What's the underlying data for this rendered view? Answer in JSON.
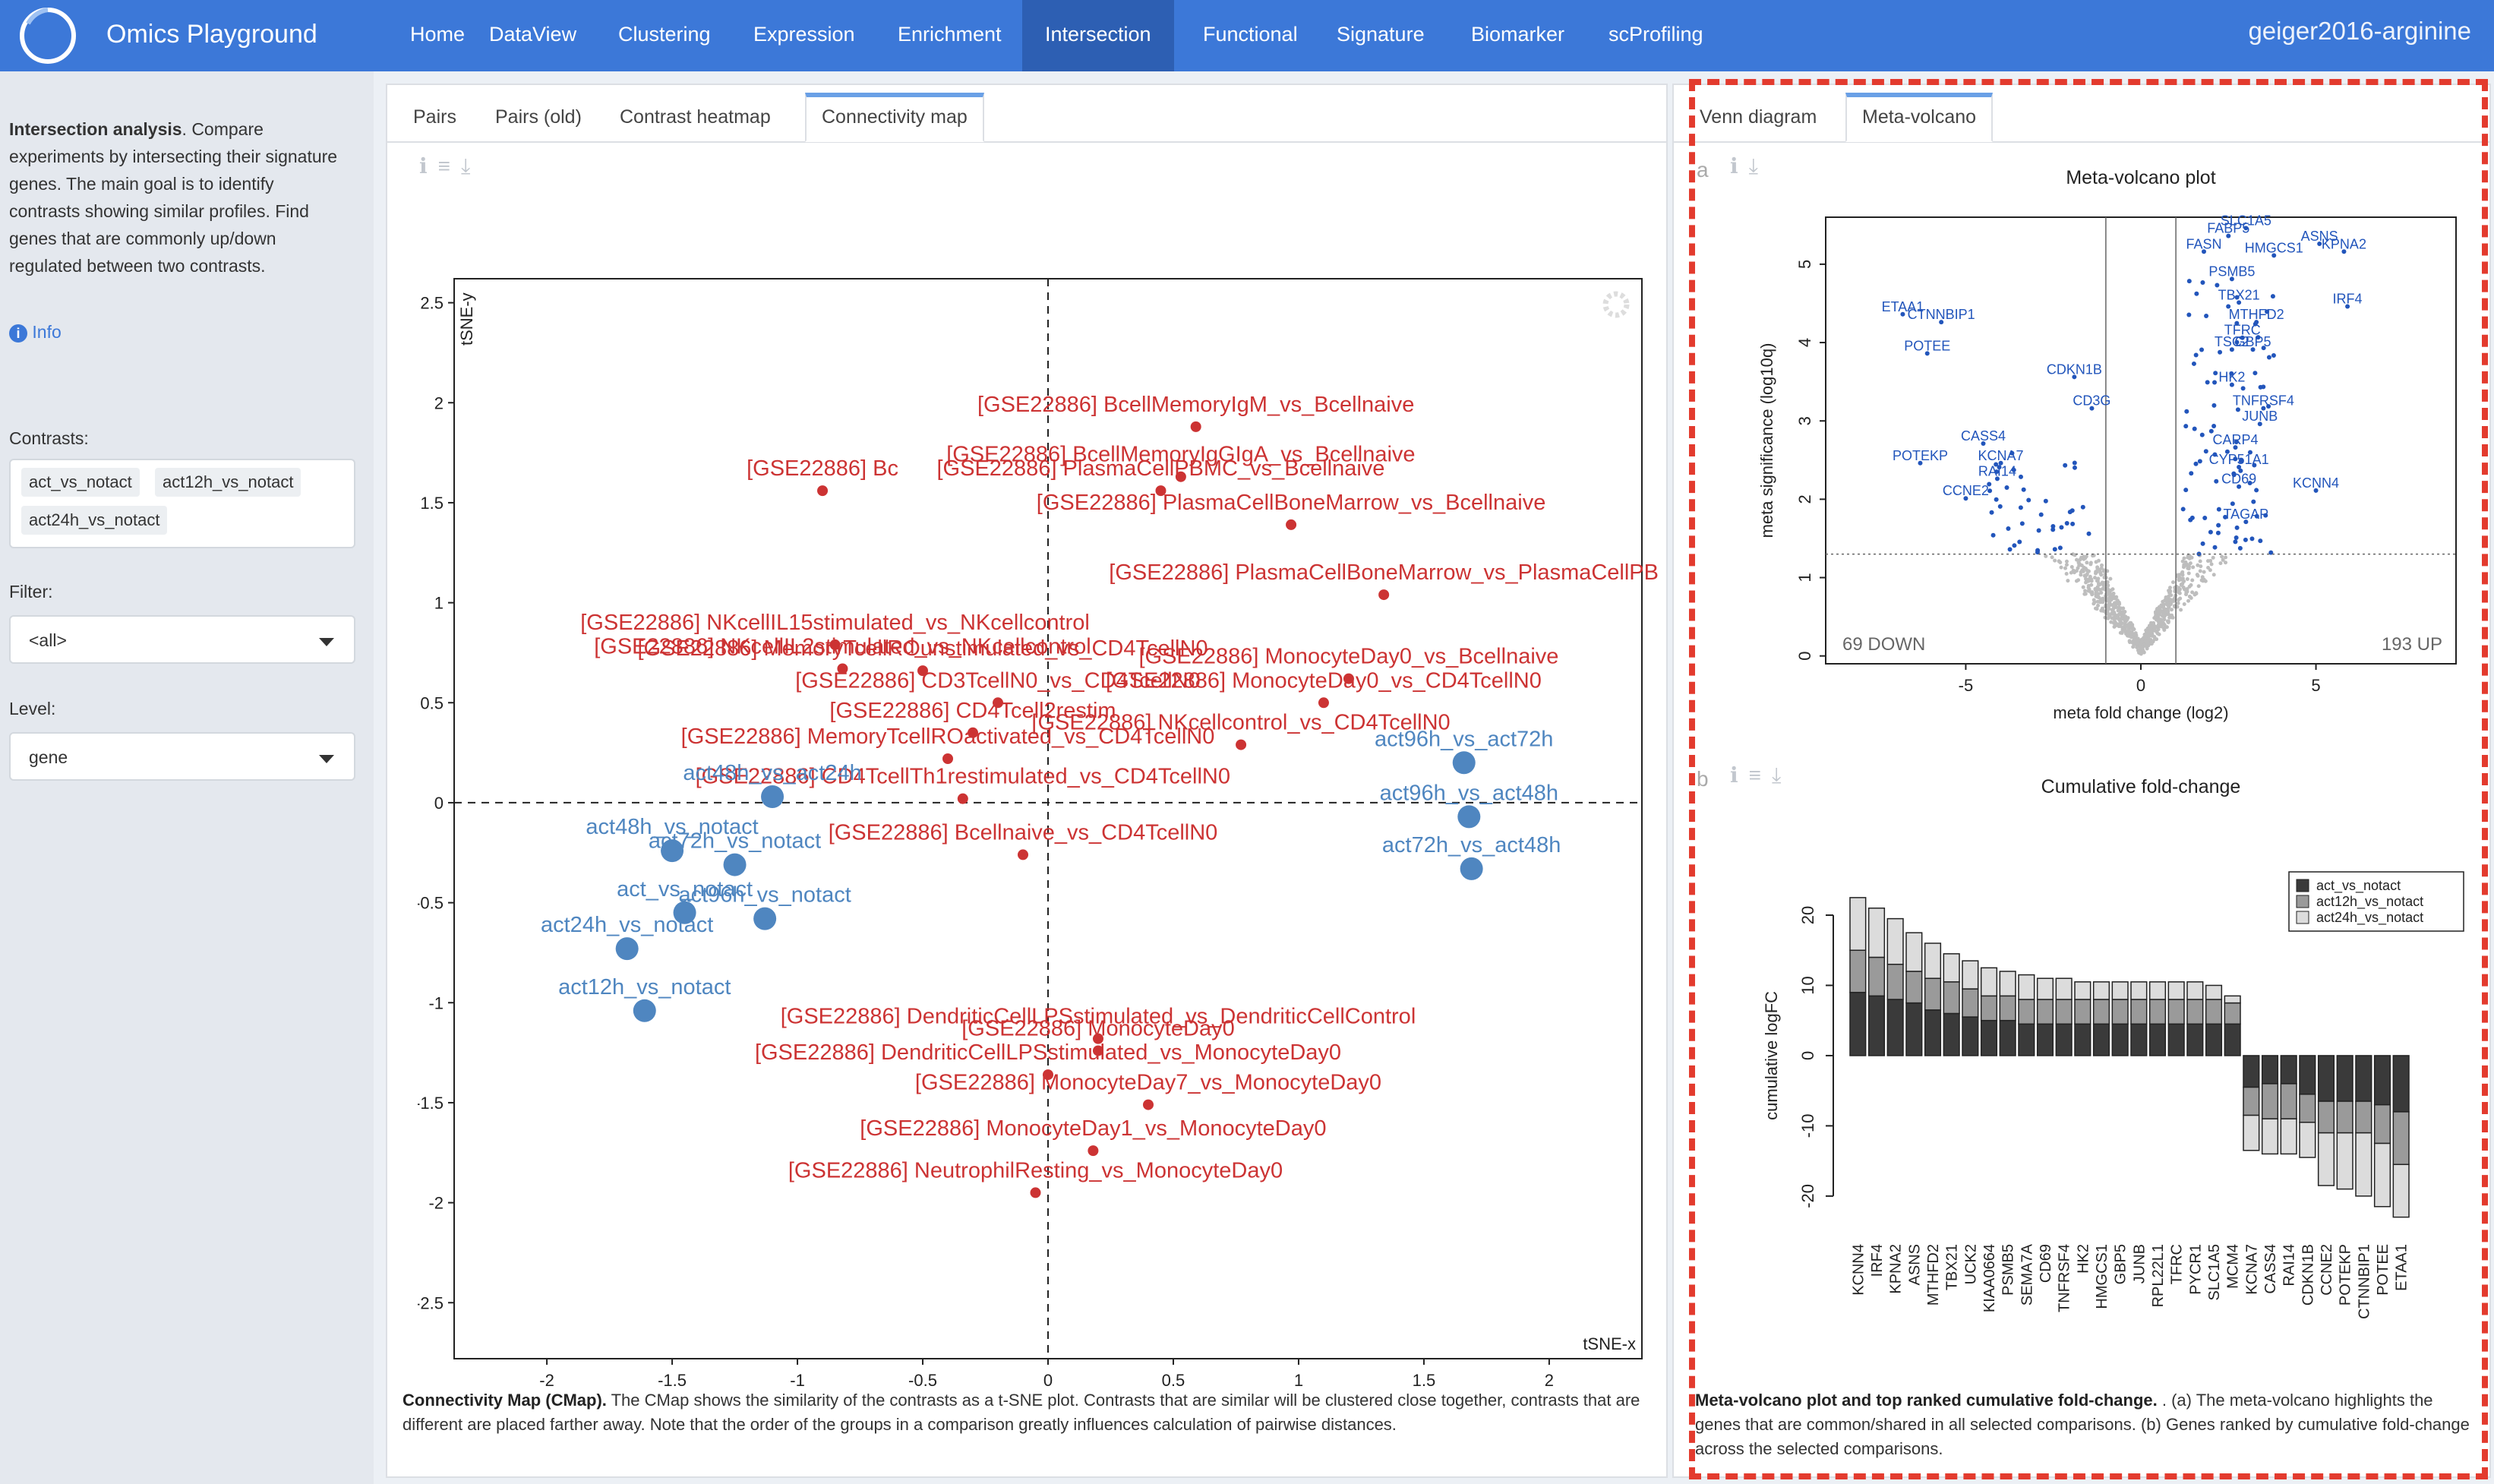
{
  "app": {
    "title": "Omics Playground",
    "dataset": "geiger2016-arginine"
  },
  "nav": {
    "items": [
      "Home",
      "DataView",
      "Clustering",
      "Expression",
      "Enrichment",
      "Intersection",
      "Functional",
      "Signature",
      "Biomarker",
      "scProfiling"
    ],
    "active": "Intersection"
  },
  "sidebar": {
    "intro_bold": "Intersection analysis",
    "intro_text": ". Compare experiments by intersecting their signature genes. The main goal is to identify contrasts showing similar profiles. Find genes that are commonly up/down regulated between two contrasts.",
    "info_label": "Info",
    "contrasts_label": "Contrasts:",
    "contrasts": [
      "act_vs_notact",
      "act12h_vs_notact",
      "act24h_vs_notact"
    ],
    "filter_label": "Filter:",
    "filter_value": "<all>",
    "level_label": "Level:",
    "level_value": "gene"
  },
  "left_panel": {
    "tabs": [
      "Pairs",
      "Pairs (old)",
      "Contrast heatmap",
      "Connectivity map"
    ],
    "active_tab": "Connectivity map",
    "caption_bold": "Connectivity Map (CMap).",
    "caption_text": " The CMap shows the similarity of the contrasts as a t-SNE plot. Contrasts that are similar will be clustered close together, contrasts that are different are placed farther away. Note that the order of the groups in a comparison greatly influences calculation of pairwise distances."
  },
  "right_panel": {
    "tabs": [
      "Venn diagram",
      "Meta-volcano"
    ],
    "active_tab": "Meta-volcano",
    "panel_a": "a",
    "panel_b": "b",
    "caption_bold": "Meta-volcano plot and top ranked cumulative fold-change.",
    "caption_text": " . (a) The meta-volcano highlights the genes that are common/shared in all selected comparisons. (b) Genes ranked by cumulative fold-change across the selected comparisons."
  },
  "colors": {
    "navbar": "#3c78d8",
    "red_series": "#cc3333",
    "blue_series": "#4f86c0",
    "volcano_sig": "#2255bb",
    "highlight_box": "#e33b2e"
  },
  "chart_data": [
    {
      "type": "scatter",
      "name": "cmap",
      "xlabel": "tSNE-x",
      "ylabel": "tSNE-y",
      "xlim": [
        -2.37,
        2.37
      ],
      "ylim": [
        -2.78,
        2.62
      ],
      "xticks": [
        -2,
        -1.5,
        -1,
        -0.5,
        0,
        0.5,
        1,
        1.5,
        2
      ],
      "yticks": [
        2.5,
        2,
        1.5,
        1,
        0.5,
        0,
        -0.5,
        -1,
        -1.5,
        -2,
        -2.5
      ],
      "points": [
        {
          "x": 0.59,
          "y": 1.88,
          "label": "[GSE22886] BcellMemoryIgM_vs_Bcellnaive",
          "c": "r"
        },
        {
          "x": 0.53,
          "y": 1.63,
          "label": "[GSE22886] BcellMemoryIgGIgA_vs_Bcellnaive",
          "c": "r"
        },
        {
          "x": 0.45,
          "y": 1.56,
          "label": "[GSE22886] PlasmaCellPBMC_vs_Bcellnaive",
          "c": "r"
        },
        {
          "x": -0.9,
          "y": 1.56,
          "label": "[GSE22886] Bc",
          "c": "r"
        },
        {
          "x": 0.97,
          "y": 1.39,
          "label": "[GSE22886] PlasmaCellBoneMarrow_vs_Bcellnaive",
          "c": "r"
        },
        {
          "x": 1.34,
          "y": 1.04,
          "label": "[GSE22886] PlasmaCellBoneMarrow_vs_PlasmaCellPB",
          "c": "r"
        },
        {
          "x": -0.85,
          "y": 0.79,
          "label": "[GSE22886] NKcellIL15stimulated_vs_NKcellcontrol",
          "c": "r"
        },
        {
          "x": -0.82,
          "y": 0.67,
          "label": "[GSE22886] NKcellIL2stimulated_vs_NKcellcontrol",
          "c": "r"
        },
        {
          "x": -0.5,
          "y": 0.66,
          "label": "[GSE22886] MemoryTcellROunstimulated_vs_CD4TcellN0",
          "c": "r"
        },
        {
          "x": 1.2,
          "y": 0.62,
          "label": "[GSE22886] MonocyteDay0_vs_Bcellnaive",
          "c": "r"
        },
        {
          "x": 1.1,
          "y": 0.5,
          "label": "[GSE22886] MonocyteDay0_vs_CD4TcellN0",
          "c": "r"
        },
        {
          "x": -0.2,
          "y": 0.5,
          "label": "[GSE22886] CD3TcellN0_vs_CD4TcellN0",
          "c": "r"
        },
        {
          "x": -0.3,
          "y": 0.35,
          "label": "[GSE22886] CD4Tcell2restim",
          "c": "r"
        },
        {
          "x": 0.77,
          "y": 0.29,
          "label": "[GSE22886] NKcellcontrol_vs_CD4TcellN0",
          "c": "r"
        },
        {
          "x": -0.4,
          "y": 0.22,
          "label": "[GSE22886] MemoryTcellROactivated_vs_CD4TcellN0",
          "c": "r"
        },
        {
          "x": -0.34,
          "y": 0.02,
          "label": "[GSE22886] CD4TcellTh1restimulated_vs_CD4TcellN0",
          "c": "r"
        },
        {
          "x": -0.1,
          "y": -0.26,
          "label": "[GSE22886] Bcellnaive_vs_CD4TcellN0",
          "c": "r"
        },
        {
          "x": 0.2,
          "y": -1.18,
          "label": "[GSE22886] DendriticCellLPSstimulated_vs_DendriticCellControl",
          "c": "r"
        },
        {
          "x": 0.2,
          "y": -1.24,
          "label": "[GSE22886] MonocyteDay0",
          "c": "r"
        },
        {
          "x": 0.0,
          "y": -1.36,
          "label": "[GSE22886] DendriticCellLPSstimulated_vs_MonocyteDay0",
          "c": "r"
        },
        {
          "x": 0.4,
          "y": -1.51,
          "label": "[GSE22886] MonocyteDay7_vs_MonocyteDay0",
          "c": "r"
        },
        {
          "x": 0.18,
          "y": -1.74,
          "label": "[GSE22886] MonocyteDay1_vs_MonocyteDay0",
          "c": "r"
        },
        {
          "x": -0.05,
          "y": -1.95,
          "label": "[GSE22886] NeutrophilResting_vs_MonocyteDay0",
          "c": "r"
        },
        {
          "x": 1.66,
          "y": 0.2,
          "label": "act96h_vs_act72h",
          "c": "b"
        },
        {
          "x": 1.68,
          "y": -0.07,
          "label": "act96h_vs_act48h",
          "c": "b"
        },
        {
          "x": 1.69,
          "y": -0.33,
          "label": "act72h_vs_act48h",
          "c": "b"
        },
        {
          "x": -1.1,
          "y": 0.03,
          "label": "act48h_vs_act24h",
          "c": "b"
        },
        {
          "x": -1.5,
          "y": -0.24,
          "label": "act48h_vs_notact",
          "c": "b"
        },
        {
          "x": -1.25,
          "y": -0.31,
          "label": "act72h_vs_notact",
          "c": "b"
        },
        {
          "x": -1.45,
          "y": -0.55,
          "label": "act_vs_notact",
          "c": "b"
        },
        {
          "x": -1.13,
          "y": -0.58,
          "label": "act96h_vs_notact",
          "c": "b"
        },
        {
          "x": -1.68,
          "y": -0.73,
          "label": "act24h_vs_notact",
          "c": "b"
        },
        {
          "x": -1.61,
          "y": -1.04,
          "label": "act12h_vs_notact",
          "c": "b"
        }
      ]
    },
    {
      "type": "scatter",
      "name": "meta-volcano",
      "title": "Meta-volcano plot",
      "xlabel": "meta fold change (log2)",
      "ylabel": "meta significance (log10q)",
      "xlim": [
        -9,
        9
      ],
      "ylim": [
        -0.1,
        5.6
      ],
      "xticks": [
        -5,
        0,
        5
      ],
      "yticks": [
        0,
        1,
        2,
        3,
        4,
        5
      ],
      "down_label": "69 DOWN",
      "up_label": "193 UP",
      "gene_labels": [
        {
          "x": 3.0,
          "y": 5.5,
          "label": "SLC1A5"
        },
        {
          "x": 2.5,
          "y": 5.4,
          "label": "FABP5"
        },
        {
          "x": 5.1,
          "y": 5.3,
          "label": "ASNS"
        },
        {
          "x": 5.8,
          "y": 5.2,
          "label": "KPNA2"
        },
        {
          "x": 1.8,
          "y": 5.2,
          "label": "FASN"
        },
        {
          "x": 3.8,
          "y": 5.15,
          "label": "HMGCS1"
        },
        {
          "x": 2.6,
          "y": 4.85,
          "label": "PSMB5"
        },
        {
          "x": 2.8,
          "y": 4.55,
          "label": "TBX21"
        },
        {
          "x": 5.9,
          "y": 4.5,
          "label": "IRF4"
        },
        {
          "x": -6.8,
          "y": 4.4,
          "label": "ETAA1"
        },
        {
          "x": -5.7,
          "y": 4.3,
          "label": "CTNNBIP1"
        },
        {
          "x": 3.3,
          "y": 4.3,
          "label": "MTHFD2"
        },
        {
          "x": 2.9,
          "y": 4.1,
          "label": "TFRC"
        },
        {
          "x": 2.6,
          "y": 3.95,
          "label": "TSC2"
        },
        {
          "x": 3.2,
          "y": 3.95,
          "label": "GBP5"
        },
        {
          "x": -6.1,
          "y": 3.9,
          "label": "POTEE"
        },
        {
          "x": -1.9,
          "y": 3.6,
          "label": "CDKN1B"
        },
        {
          "x": 2.6,
          "y": 3.5,
          "label": "HK2"
        },
        {
          "x": 3.5,
          "y": 3.2,
          "label": "TNFRSF4"
        },
        {
          "x": 3.4,
          "y": 3.0,
          "label": "JUNB"
        },
        {
          "x": -1.4,
          "y": 3.2,
          "label": "CD3G"
        },
        {
          "x": -4.5,
          "y": 2.75,
          "label": "CASS4"
        },
        {
          "x": 2.7,
          "y": 2.7,
          "label": "CARP4"
        },
        {
          "x": -6.3,
          "y": 2.5,
          "label": "POTEKP"
        },
        {
          "x": -4.0,
          "y": 2.5,
          "label": "KCNA7"
        },
        {
          "x": 2.8,
          "y": 2.45,
          "label": "CYP51A1"
        },
        {
          "x": -4.1,
          "y": 2.3,
          "label": "RAI14"
        },
        {
          "x": 2.8,
          "y": 2.2,
          "label": "CD69"
        },
        {
          "x": 5.0,
          "y": 2.15,
          "label": "KCNN4"
        },
        {
          "x": -5.0,
          "y": 2.05,
          "label": "CCNE2"
        },
        {
          "x": 3.0,
          "y": 1.75,
          "label": "TAGAP"
        }
      ]
    },
    {
      "type": "bar",
      "name": "cumulative-fold-change",
      "title": "Cumulative fold-change",
      "ylabel": "cumulative logFC",
      "ylim": [
        -22.5,
        24
      ],
      "yticks": [
        20,
        10,
        0,
        -10,
        -20
      ],
      "legend": [
        "act_vs_notact",
        "act12h_vs_notact",
        "act24h_vs_notact"
      ],
      "legend_position": "top-right",
      "series_colors": [
        "#3a3a3a",
        "#9a9a9a",
        "#dcdcdc"
      ],
      "categories": [
        "KCNN4",
        "IRF4",
        "KPNA2",
        "ASNS",
        "MTHFD2",
        "TBX21",
        "UCK2",
        "KIAA0664",
        "PSMB5",
        "SEMA7A",
        "CD69",
        "TNFRSF4",
        "HK2",
        "HMGCS1",
        "GBP5",
        "JUNB",
        "RPL22L1",
        "TFRC",
        "PYCR1",
        "SLC1A5",
        "MCM4",
        "KCNA7",
        "CASS4",
        "RAI14",
        "CDKN1B",
        "CCNE2",
        "POTEKP",
        "CTNNBIP1",
        "POTEE",
        "ETAA1"
      ],
      "series": [
        {
          "name": "act_vs_notact",
          "values": [
            9,
            8.5,
            8,
            7.5,
            6.5,
            6,
            5.5,
            5,
            5,
            4.5,
            4.5,
            4.5,
            4.5,
            4.5,
            4.5,
            4.5,
            4.5,
            4.5,
            4.5,
            4.5,
            4.5,
            -4.5,
            -4,
            -4,
            -5.5,
            -6.5,
            -6.5,
            -6.5,
            -7,
            -8
          ]
        },
        {
          "name": "act12h_vs_notact",
          "values": [
            6,
            5.5,
            5,
            4.5,
            4.5,
            4.5,
            4,
            3.5,
            3.5,
            3.5,
            3.5,
            3.5,
            3.5,
            3.5,
            3.5,
            3.5,
            3.5,
            3.5,
            3.5,
            3.5,
            3,
            -4,
            -5,
            -5,
            -4,
            -4.5,
            -4.5,
            -4.5,
            -5.5,
            -7.5
          ]
        },
        {
          "name": "act24h_vs_notact",
          "values": [
            7.5,
            7,
            6.5,
            5.5,
            5,
            4,
            4,
            4,
            3.5,
            3.5,
            3,
            3,
            2.5,
            2.5,
            2.5,
            2.5,
            2.5,
            2.5,
            2.5,
            2,
            1,
            -5,
            -5,
            -5,
            -5,
            -7.5,
            -8,
            -9,
            -9,
            -7.5
          ]
        }
      ]
    }
  ]
}
